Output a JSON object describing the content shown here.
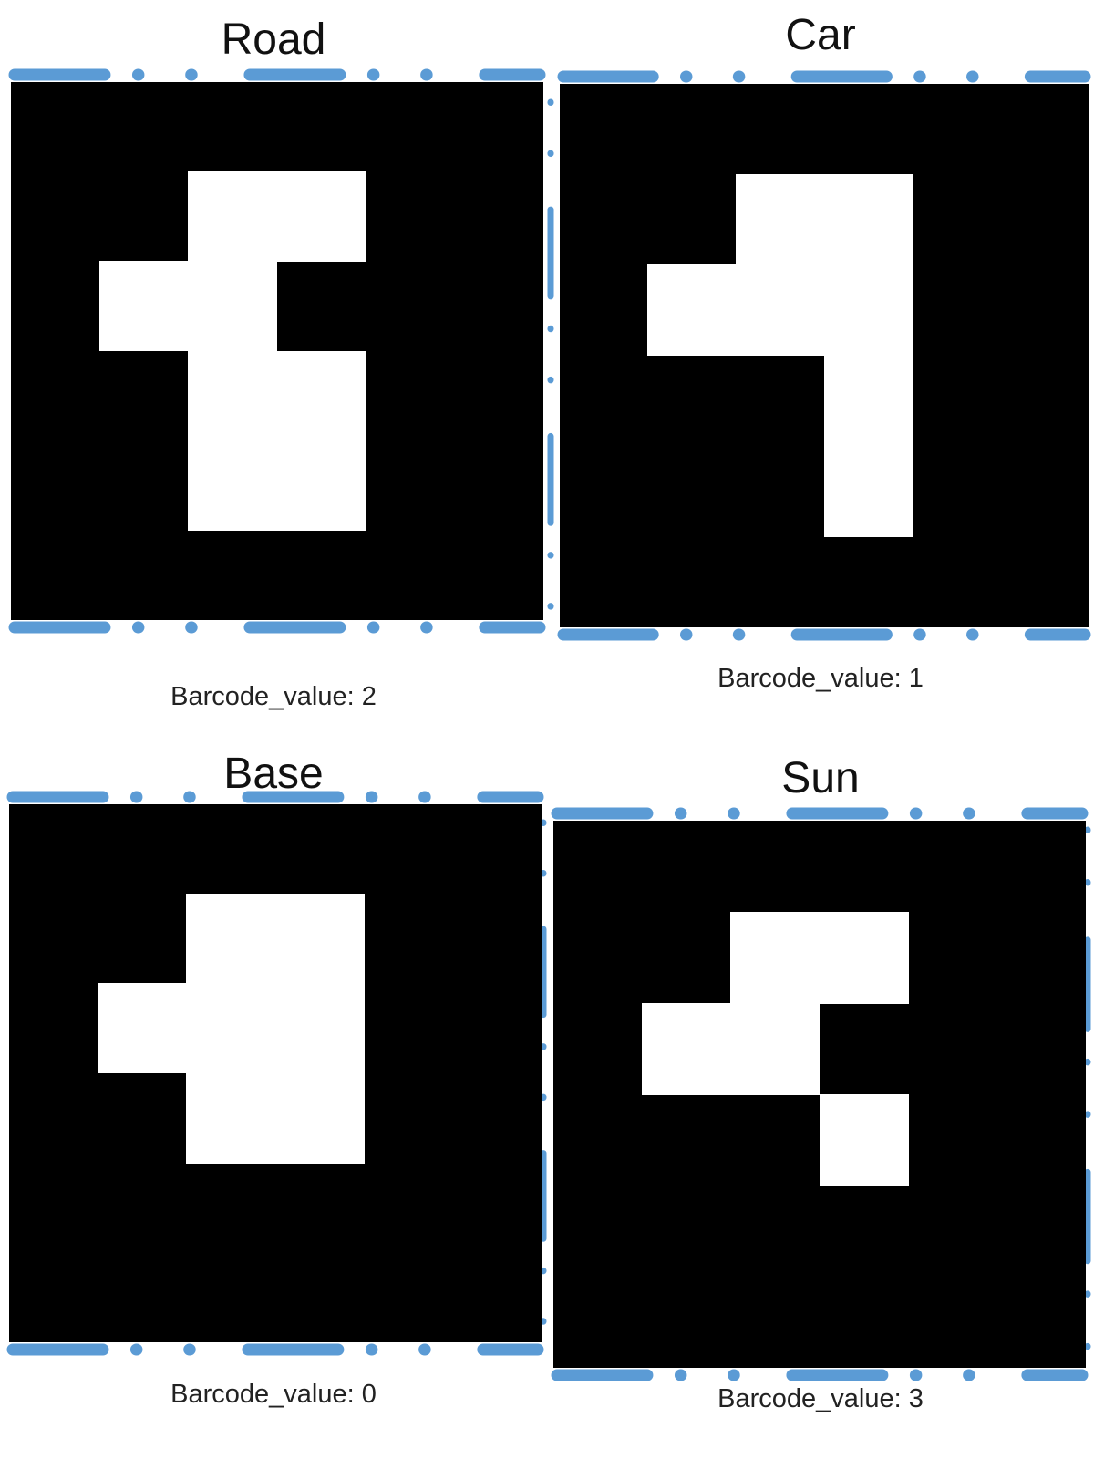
{
  "colors": {
    "border_accent": "#5b9bd5",
    "marker_bg": "#000000",
    "marker_fg": "#ffffff"
  },
  "markers": [
    {
      "name": "Road",
      "caption": "Barcode_value: 2",
      "barcode_value": 2,
      "grid_size": 6,
      "cells": [
        [
          1,
          2
        ],
        [
          1,
          3
        ],
        [
          2,
          1
        ],
        [
          2,
          2
        ],
        [
          3,
          2
        ],
        [
          3,
          3
        ],
        [
          4,
          2
        ],
        [
          4,
          3
        ]
      ]
    },
    {
      "name": "Car",
      "caption": "Barcode_value: 1",
      "barcode_value": 1,
      "grid_size": 6,
      "cells": [
        [
          1,
          2
        ],
        [
          1,
          3
        ],
        [
          2,
          1
        ],
        [
          2,
          2
        ],
        [
          2,
          3
        ],
        [
          3,
          3
        ],
        [
          4,
          3
        ]
      ]
    },
    {
      "name": "Base",
      "caption": "Barcode_value: 0",
      "barcode_value": 0,
      "grid_size": 6,
      "cells": [
        [
          1,
          2
        ],
        [
          1,
          3
        ],
        [
          2,
          1
        ],
        [
          2,
          2
        ],
        [
          2,
          3
        ],
        [
          3,
          2
        ],
        [
          3,
          3
        ]
      ]
    },
    {
      "name": "Sun",
      "caption": "Barcode_value: 3",
      "barcode_value": 3,
      "grid_size": 6,
      "cells": [
        [
          1,
          2
        ],
        [
          1,
          3
        ],
        [
          2,
          1
        ],
        [
          2,
          2
        ],
        [
          3,
          3
        ]
      ]
    }
  ]
}
